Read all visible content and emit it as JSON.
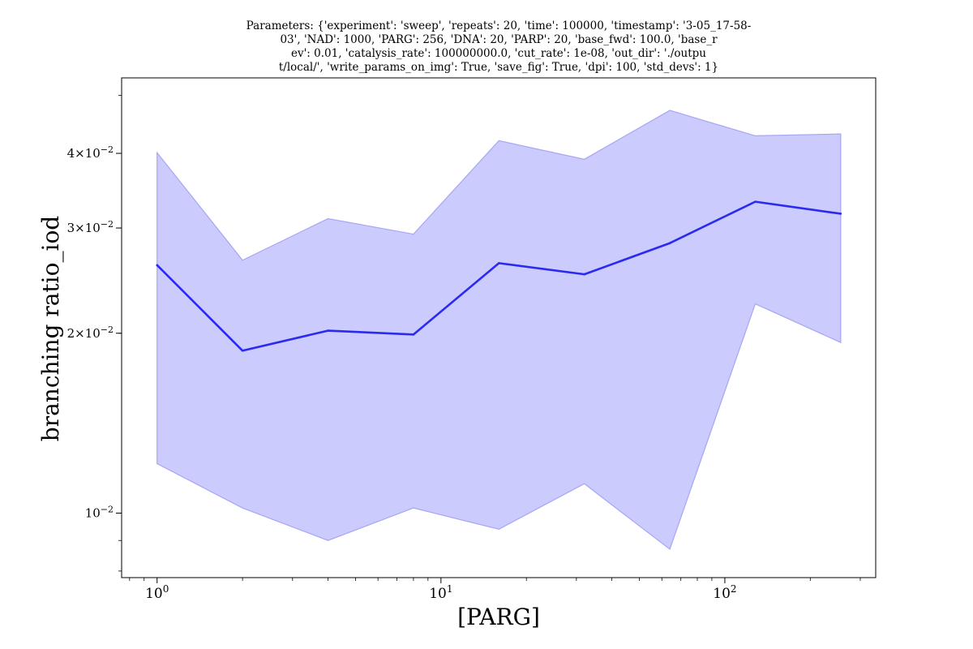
{
  "chart_data": {
    "type": "line",
    "title_lines": [
      "Parameters: {'experiment': 'sweep', 'repeats': 20, 'time': 100000, 'timestamp': '3-05_17-58-",
      "03', 'NAD': 1000, 'PARG': 256, 'DNA': 20, 'PARP': 20, 'base_fwd': 100.0, 'base_r",
      "ev': 0.01, 'catalysis_rate': 100000000.0, 'cut_rate': 1e-08, 'out_dir': './outpu",
      "t/local/', 'write_params_on_img': True, 'save_fig': True, 'dpi': 100, 'std_devs': 1}"
    ],
    "xlabel": "[PARG]",
    "ylabel": "branching ratio_iod",
    "x_scale": "log",
    "y_scale": "log",
    "xlim": [
      0.75,
      340
    ],
    "ylim": [
      0.0078,
      0.0535
    ],
    "x_ticks": [
      {
        "value": 1,
        "base": "10",
        "exp": "0"
      },
      {
        "value": 10,
        "base": "10",
        "exp": "1"
      },
      {
        "value": 100,
        "base": "10",
        "exp": "2"
      }
    ],
    "y_ticks": [
      {
        "value": 0.01,
        "mantissa": "",
        "base": "10",
        "exp": "−2"
      },
      {
        "value": 0.02,
        "mantissa": "2",
        "base": "10",
        "exp": "−2"
      },
      {
        "value": 0.03,
        "mantissa": "3",
        "base": "10",
        "exp": "−2"
      },
      {
        "value": 0.04,
        "mantissa": "4",
        "base": "10",
        "exp": "−2"
      }
    ],
    "x": [
      1,
      2,
      4,
      8,
      16,
      32,
      64,
      128,
      256
    ],
    "series": [
      {
        "values": [
          0.026,
          0.0187,
          0.0202,
          0.0199,
          0.0262,
          0.0251,
          0.0283,
          0.0332,
          0.0317
        ],
        "upper": [
          0.0401,
          0.0265,
          0.0311,
          0.0293,
          0.042,
          0.0391,
          0.0472,
          0.0428,
          0.0431
        ],
        "lower": [
          0.0121,
          0.0102,
          0.009,
          0.0102,
          0.0094,
          0.0112,
          0.0087,
          0.0224,
          0.0193
        ],
        "line_color": "#2a2af0",
        "band_color": "#cbcbfd",
        "band_edge_color": "#a6a6f5"
      }
    ],
    "grid": false,
    "legend": "none"
  }
}
